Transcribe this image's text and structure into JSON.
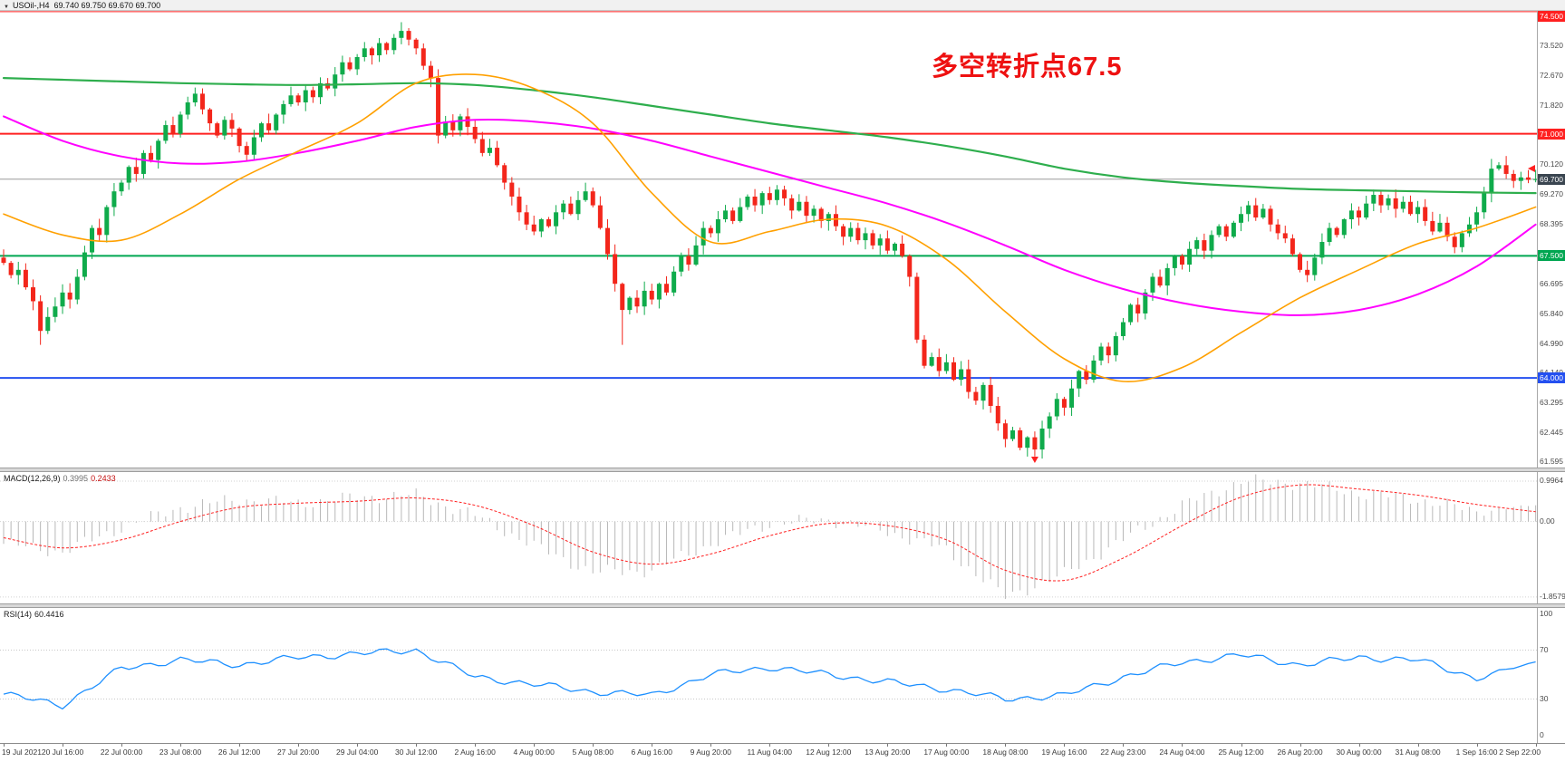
{
  "header": {
    "symbol_period": "USOil-,H4",
    "quote": "69.740 69.750 69.670 69.700"
  },
  "annotation": {
    "text": "多空转折点67.5",
    "color": "#ee1111"
  },
  "macd": {
    "name": "MACD(12,26,9)",
    "value_main": "0.3995",
    "value_signal": "0.2433",
    "scale_labels": [
      "0.9964",
      "0.00",
      "-1.8579"
    ],
    "scale_values": [
      0.9964,
      0,
      -1.8579
    ]
  },
  "rsi": {
    "name": "RSI(14)",
    "value": "60.4416",
    "scale_labels": [
      "100",
      "70",
      "30",
      "0"
    ],
    "scale_values": [
      100,
      70,
      30,
      0
    ],
    "level_lines": [
      70,
      30
    ]
  },
  "price_scale": {
    "ticks": [
      {
        "label": "73.520",
        "price": 73.52
      },
      {
        "label": "72.670",
        "price": 72.67
      },
      {
        "label": "71.820",
        "price": 71.82
      },
      {
        "label": "70.120",
        "price": 70.12
      },
      {
        "label": "69.270",
        "price": 69.27
      },
      {
        "label": "68.395",
        "price": 68.395
      },
      {
        "label": "66.695",
        "price": 66.695
      },
      {
        "label": "65.840",
        "price": 65.84
      },
      {
        "label": "64.990",
        "price": 64.99
      },
      {
        "label": "64.140",
        "price": 64.14
      },
      {
        "label": "63.295",
        "price": 63.295
      },
      {
        "label": "62.445",
        "price": 62.445
      },
      {
        "label": "61.595",
        "price": 61.595
      }
    ],
    "badges": [
      {
        "label": "74.500",
        "price": 74.5,
        "bg": "#ff2020"
      },
      {
        "label": "71.000",
        "price": 71.0,
        "bg": "#ff2020"
      },
      {
        "label": "69.700",
        "price": 69.7,
        "bg": "#3a4550"
      },
      {
        "label": "67.500",
        "price": 67.5,
        "bg": "#00a651"
      },
      {
        "label": "64.000",
        "price": 64.0,
        "bg": "#2450f0"
      }
    ]
  },
  "time_axis": {
    "labels": [
      "19 Jul 2021",
      "20 Jul 16:00",
      "22 Jul 00:00",
      "23 Jul 08:00",
      "26 Jul 12:00",
      "27 Jul 20:00",
      "29 Jul 04:00",
      "30 Jul 12:00",
      "2 Aug 16:00",
      "4 Aug 00:00",
      "5 Aug 08:00",
      "6 Aug 16:00",
      "9 Aug 20:00",
      "11 Aug 04:00",
      "12 Aug 12:00",
      "13 Aug 20:00",
      "17 Aug 00:00",
      "18 Aug 08:00",
      "19 Aug 16:00",
      "22 Aug 23:00",
      "24 Aug 04:00",
      "25 Aug 12:00",
      "26 Aug 20:00",
      "30 Aug 00:00",
      "31 Aug 08:00",
      "1 Sep 16:00",
      "2 Sep 22:00"
    ],
    "bars_per_label": 8
  },
  "colors": {
    "bull": "#0fab4b",
    "bear": "#f3261b",
    "ma_fast_orange": "#ffa000",
    "ma_mid_magenta": "#ff00ff",
    "ma_slow_green": "#2eae4d",
    "macd_hist": "#b8b8b8",
    "macd_signal": "#ff2020",
    "rsi_line": "#1e90ff",
    "level_red": "#ff2020",
    "level_green": "#00a651",
    "level_blue": "#2450f0",
    "current_price_line": "#9a9a9a"
  },
  "chart_data": {
    "type": "candlestick",
    "symbol": "USOil-",
    "timeframe": "H4",
    "title": "USOil-,H4",
    "quote_ohlc": {
      "open": "69.740",
      "high": "69.750",
      "low": "69.670",
      "close": "69.700"
    },
    "current_price": 69.7,
    "price_axis_range": [
      61.45,
      74.55
    ],
    "levels": [
      {
        "price": 74.5,
        "color": "#ff2020",
        "width": 1,
        "role": "resistance"
      },
      {
        "price": 71.0,
        "color": "#ff2020",
        "width": 2,
        "role": "resistance"
      },
      {
        "price": 67.5,
        "color": "#00a651",
        "width": 2,
        "role": "pivot"
      },
      {
        "price": 64.0,
        "color": "#2450f0",
        "width": 2,
        "role": "support"
      },
      {
        "price": 69.7,
        "color": "#9a9a9a",
        "width": 1,
        "role": "current-price"
      }
    ],
    "first_open": 67.45,
    "closes": [
      67.3,
      66.95,
      67.1,
      66.6,
      66.2,
      65.35,
      65.75,
      66.05,
      66.45,
      66.25,
      66.9,
      67.6,
      68.3,
      68.1,
      68.9,
      69.35,
      69.6,
      70.05,
      69.85,
      70.45,
      70.25,
      70.8,
      71.25,
      71.0,
      71.55,
      71.9,
      72.15,
      71.7,
      71.3,
      70.95,
      71.4,
      71.15,
      70.65,
      70.4,
      70.9,
      71.3,
      71.1,
      71.55,
      71.85,
      72.1,
      71.9,
      72.25,
      72.05,
      72.45,
      72.3,
      72.7,
      73.05,
      72.85,
      73.2,
      73.45,
      73.25,
      73.6,
      73.4,
      73.75,
      73.95,
      73.7,
      73.45,
      72.95,
      72.6,
      70.95,
      71.35,
      71.1,
      71.5,
      71.2,
      70.85,
      70.45,
      70.6,
      70.1,
      69.6,
      69.2,
      68.75,
      68.4,
      68.2,
      68.55,
      68.35,
      68.75,
      69.0,
      68.7,
      69.1,
      69.35,
      68.95,
      68.3,
      67.55,
      66.7,
      65.95,
      66.3,
      66.05,
      66.5,
      66.25,
      66.7,
      66.45,
      67.05,
      67.5,
      67.25,
      67.8,
      68.3,
      68.15,
      68.55,
      68.8,
      68.5,
      68.9,
      69.2,
      68.95,
      69.3,
      69.1,
      69.4,
      69.15,
      68.8,
      69.05,
      68.65,
      68.85,
      68.5,
      68.7,
      68.35,
      68.05,
      68.3,
      67.95,
      68.15,
      67.8,
      68.0,
      67.65,
      67.85,
      67.5,
      66.9,
      65.1,
      64.35,
      64.6,
      64.2,
      64.45,
      63.95,
      64.25,
      63.6,
      63.35,
      63.8,
      63.2,
      62.7,
      62.25,
      62.5,
      62.0,
      62.3,
      61.95,
      62.55,
      62.9,
      63.4,
      63.15,
      63.7,
      64.2,
      63.95,
      64.5,
      64.9,
      64.65,
      65.2,
      65.6,
      66.1,
      65.85,
      66.45,
      66.9,
      66.65,
      67.15,
      67.5,
      67.25,
      67.7,
      67.95,
      67.65,
      68.1,
      68.35,
      68.05,
      68.45,
      68.7,
      68.95,
      68.6,
      68.85,
      68.4,
      68.15,
      68.0,
      67.55,
      67.1,
      66.95,
      67.45,
      67.9,
      68.3,
      68.1,
      68.55,
      68.8,
      68.6,
      69.0,
      69.25,
      68.95,
      69.15,
      68.85,
      69.05,
      68.7,
      68.9,
      68.5,
      68.2,
      68.45,
      68.05,
      67.75,
      68.15,
      68.4,
      68.75,
      69.3,
      70.0,
      70.1,
      69.85,
      69.65,
      69.75,
      69.68,
      69.7
    ],
    "wick_overrides": {
      "5": {
        "low": 64.95
      },
      "54": {
        "high": 74.2
      },
      "84": {
        "low": 64.95
      },
      "140": {
        "low": 61.75
      },
      "202": {
        "high": 70.28
      }
    },
    "moving_averages": {
      "sample_step_bars": 8,
      "slow_green": [
        72.6,
        72.55,
        72.5,
        72.45,
        72.42,
        72.4,
        72.42,
        72.45,
        72.4,
        72.25,
        72.05,
        71.8,
        71.55,
        71.3,
        71.1,
        70.9,
        70.65,
        70.35,
        70.0,
        69.75,
        69.6,
        69.5,
        69.42,
        69.38,
        69.35,
        69.32,
        69.3
      ],
      "mid_magenta": [
        71.5,
        70.8,
        70.35,
        70.15,
        70.2,
        70.45,
        70.8,
        71.2,
        71.4,
        71.35,
        71.15,
        70.8,
        70.35,
        69.9,
        69.45,
        69.0,
        68.45,
        67.8,
        67.1,
        66.55,
        66.15,
        65.9,
        65.8,
        65.95,
        66.4,
        67.2,
        68.4
      ],
      "fast_orange": [
        68.7,
        68.1,
        67.95,
        68.7,
        69.7,
        70.5,
        71.3,
        72.45,
        72.7,
        72.3,
        71.3,
        69.3,
        67.9,
        68.2,
        68.55,
        68.35,
        67.4,
        65.9,
        64.55,
        63.9,
        64.3,
        65.3,
        66.3,
        67.1,
        67.85,
        68.3,
        68.9
      ]
    },
    "macd_series": {
      "main": [
        -0.55,
        -0.75,
        -0.15,
        0.35,
        0.55,
        0.45,
        0.6,
        0.65,
        0.15,
        -0.6,
        -1.25,
        -1.2,
        -0.55,
        -0.05,
        0.05,
        -0.25,
        -0.7,
        -1.86,
        -1.3,
        -0.45,
        0.4,
        1.0,
        0.95,
        0.7,
        0.55,
        0.25,
        0.4
      ],
      "signal": [
        -0.4,
        -0.65,
        -0.45,
        0.0,
        0.35,
        0.45,
        0.5,
        0.58,
        0.4,
        -0.1,
        -0.75,
        -1.05,
        -0.8,
        -0.35,
        -0.05,
        -0.1,
        -0.45,
        -1.2,
        -1.45,
        -0.9,
        -0.1,
        0.6,
        0.9,
        0.8,
        0.65,
        0.42,
        0.24
      ]
    },
    "rsi_series": [
      34,
      25,
      55,
      62,
      58,
      64,
      67,
      70,
      48,
      42,
      36,
      33,
      50,
      56,
      50,
      44,
      38,
      30,
      33,
      48,
      60,
      66,
      58,
      64,
      62,
      47,
      60.4
    ]
  }
}
